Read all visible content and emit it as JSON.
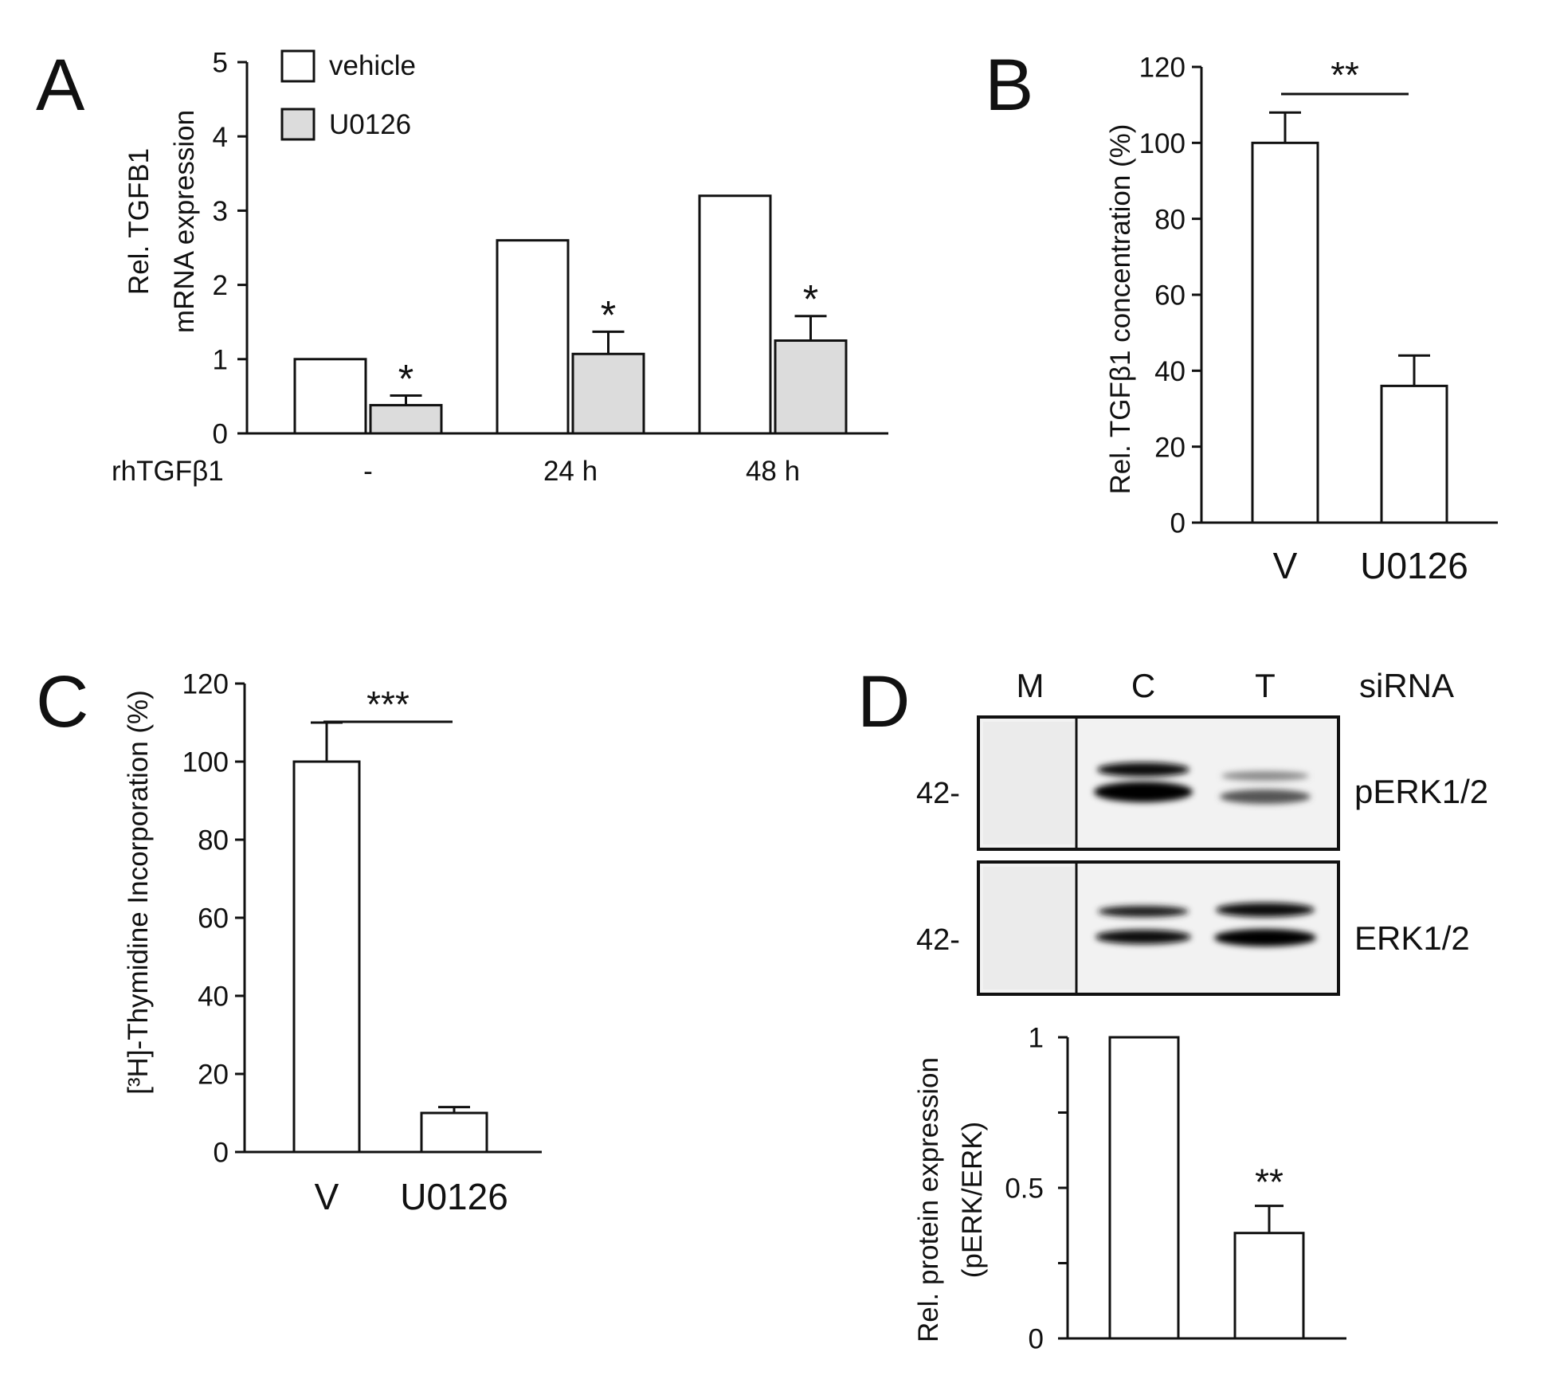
{
  "colors": {
    "vehicle": "#ffffff",
    "U0126": "#dcdcdc",
    "stroke": "#111111"
  },
  "panels": {
    "A": {
      "letter": "A"
    },
    "B": {
      "letter": "B"
    },
    "C": {
      "letter": "C"
    },
    "D": {
      "letter": "D",
      "blot": {
        "lanes": [
          "M",
          "C",
          "T"
        ],
        "lane_header": "siRNA",
        "rows": [
          {
            "label": "pERK1/2",
            "marker": "42-"
          },
          {
            "label": "ERK1/2",
            "marker": "42-"
          }
        ]
      }
    }
  },
  "chart_data": [
    {
      "id": "A",
      "type": "bar",
      "ylabel": [
        "Rel. TGFB1",
        "mRNA expression"
      ],
      "xlabel": "rhTGFβ1",
      "categories": [
        "-",
        "24 h",
        "48 h"
      ],
      "series": [
        {
          "name": "vehicle",
          "values": [
            1.0,
            2.6,
            3.2
          ],
          "errors": [
            0,
            0,
            0
          ],
          "sig": [
            "",
            "",
            ""
          ]
        },
        {
          "name": "U0126",
          "values": [
            0.38,
            1.07,
            1.25
          ],
          "errors": [
            0.13,
            0.3,
            0.33
          ],
          "sig": [
            "*",
            "*",
            "*"
          ]
        }
      ],
      "ylim": [
        0,
        5
      ],
      "yticks": [
        0,
        1,
        2,
        3,
        4,
        5
      ],
      "legend": "top-left"
    },
    {
      "id": "B",
      "type": "bar",
      "ylabel": "Rel. TGFβ1 concentration (%)",
      "categories": [
        "V",
        "U0126"
      ],
      "values": [
        100,
        36
      ],
      "errors": [
        8,
        8
      ],
      "ylim": [
        0,
        120
      ],
      "yticks": [
        0,
        20,
        40,
        60,
        80,
        100,
        120
      ],
      "significance": "**"
    },
    {
      "id": "C",
      "type": "bar",
      "ylabel": "[³H]-Thymidine Incorporation (%)",
      "categories": [
        "V",
        "U0126"
      ],
      "values": [
        100,
        10
      ],
      "errors": [
        10,
        1.5
      ],
      "ylim": [
        0,
        120
      ],
      "yticks": [
        0,
        20,
        40,
        60,
        80,
        100,
        120
      ],
      "significance": "***"
    },
    {
      "id": "D",
      "type": "bar",
      "ylabel": [
        "Rel. protein expression",
        "(pERK/ERK)"
      ],
      "categories": [
        "C",
        "T"
      ],
      "values": [
        1.0,
        0.35
      ],
      "errors": [
        0,
        0.09
      ],
      "ylim": [
        0,
        1
      ],
      "yticks": [
        0,
        0.5,
        1
      ],
      "sig": [
        "",
        "**"
      ]
    }
  ]
}
